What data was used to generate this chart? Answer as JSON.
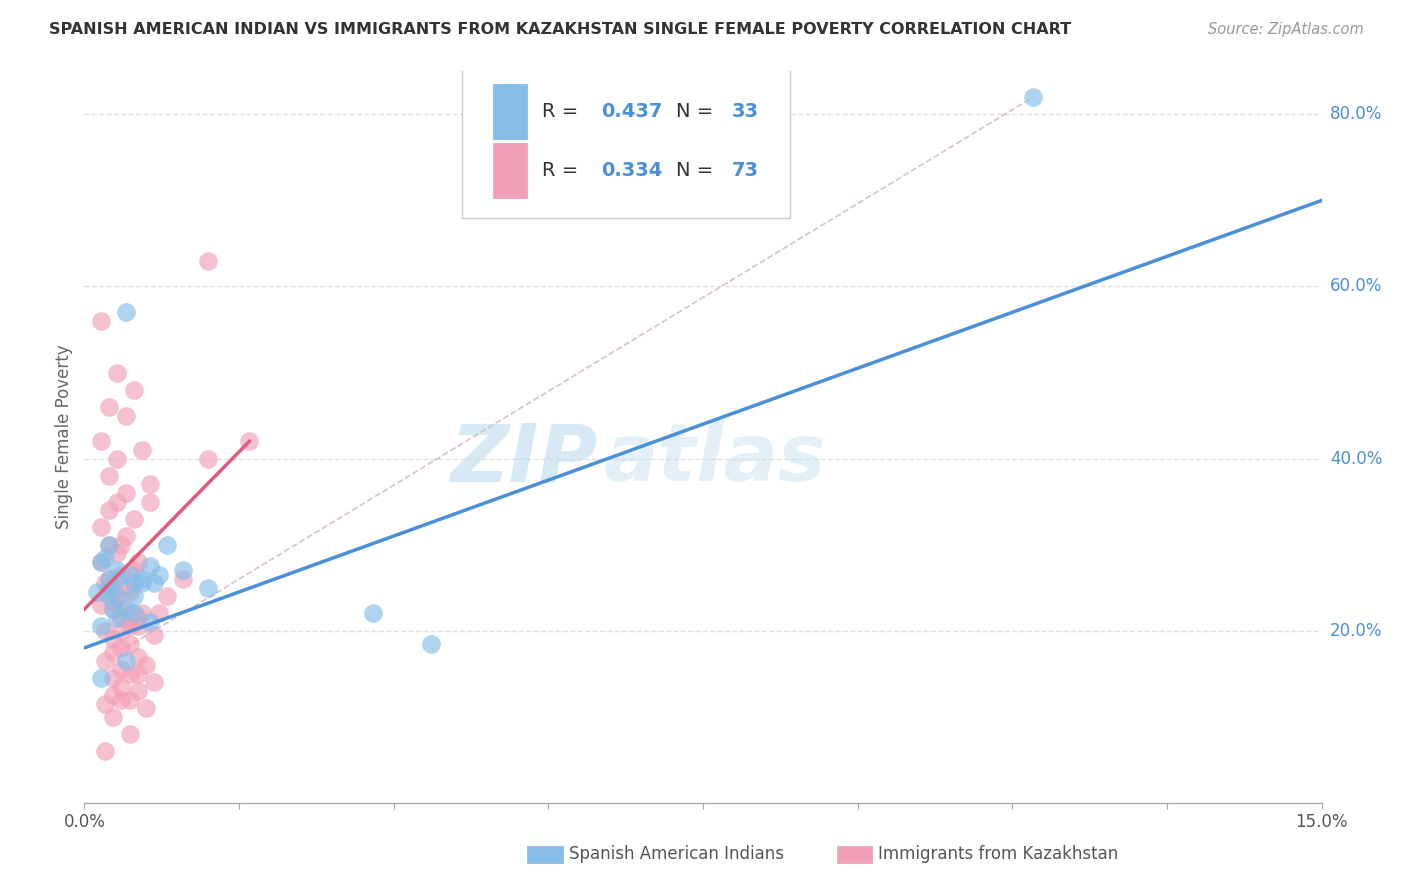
{
  "title": "SPANISH AMERICAN INDIAN VS IMMIGRANTS FROM KAZAKHSTAN SINGLE FEMALE POVERTY CORRELATION CHART",
  "source": "Source: ZipAtlas.com",
  "ylabel": "Single Female Poverty",
  "R1": "0.437",
  "N1": "33",
  "R2": "0.334",
  "N2": "73",
  "color1": "#85bde8",
  "color2": "#f2a0b5",
  "line1_color": "#4a90d9",
  "line2_color": "#e05a7a",
  "diag_color": "#d4b0b8",
  "watermark_zip": "ZIP",
  "watermark_atlas": "atlas",
  "xlim": [
    0.0,
    15.0
  ],
  "ylim": [
    0.0,
    85.0
  ],
  "legend_label1": "Spanish American Indians",
  "legend_label2": "Immigrants from Kazakhstan",
  "scatter1_x": [
    0.5,
    0.3,
    0.8,
    0.2,
    0.4,
    0.6,
    0.15,
    0.9,
    1.2,
    0.35,
    0.7,
    1.5,
    0.4,
    0.25,
    0.55,
    0.85,
    0.3,
    0.6,
    0.4,
    0.2,
    1.0,
    0.7,
    0.5,
    3.5,
    4.2,
    0.4,
    0.3,
    0.6,
    0.2,
    11.5,
    0.8,
    0.5,
    0.3
  ],
  "scatter1_y": [
    57.0,
    30.0,
    27.5,
    28.0,
    26.0,
    25.5,
    24.5,
    26.5,
    27.0,
    22.5,
    26.0,
    25.0,
    24.0,
    28.5,
    26.5,
    25.5,
    24.0,
    22.0,
    21.5,
    20.5,
    30.0,
    25.5,
    22.5,
    22.0,
    18.5,
    27.0,
    26.0,
    24.0,
    14.5,
    82.0,
    21.0,
    16.5,
    25.0
  ],
  "scatter2_x": [
    1.5,
    0.2,
    0.4,
    0.6,
    0.3,
    0.5,
    0.2,
    0.7,
    0.4,
    0.3,
    0.8,
    0.5,
    0.4,
    0.3,
    0.6,
    0.2,
    0.5,
    0.3,
    0.4,
    0.2,
    0.6,
    0.3,
    0.5,
    0.4,
    0.2,
    0.7,
    0.35,
    0.45,
    0.55,
    0.65,
    0.25,
    0.85,
    0.35,
    0.55,
    0.45,
    0.35,
    0.65,
    0.25,
    0.75,
    0.45,
    0.55,
    0.35,
    0.85,
    0.45,
    0.65,
    0.35,
    0.55,
    0.25,
    0.75,
    1.0,
    1.2,
    0.9,
    0.45,
    0.35,
    0.55,
    0.65,
    0.25,
    0.45,
    0.55,
    0.35,
    1.5,
    0.8,
    0.45,
    0.65,
    0.35,
    0.55,
    0.45,
    2.0,
    0.65,
    0.35,
    0.55,
    0.45,
    0.25
  ],
  "scatter2_y": [
    63.0,
    56.0,
    50.0,
    48.0,
    46.0,
    45.0,
    42.0,
    41.0,
    40.0,
    38.0,
    37.0,
    36.0,
    35.0,
    34.0,
    33.0,
    32.0,
    31.0,
    30.0,
    29.0,
    28.0,
    27.0,
    26.0,
    25.0,
    24.0,
    23.0,
    22.0,
    22.5,
    21.5,
    21.0,
    20.5,
    20.0,
    19.5,
    19.0,
    18.5,
    18.0,
    17.5,
    17.0,
    16.5,
    16.0,
    15.5,
    15.0,
    14.5,
    14.0,
    13.5,
    13.0,
    12.5,
    12.0,
    11.5,
    11.0,
    24.0,
    26.0,
    22.0,
    22.5,
    24.5,
    20.5,
    21.5,
    25.5,
    26.5,
    24.5,
    23.5,
    40.0,
    35.0,
    30.0,
    28.0,
    25.0,
    22.0,
    20.0,
    42.0,
    15.0,
    10.0,
    8.0,
    12.0,
    6.0
  ],
  "line1_x0": 0.0,
  "line1_y0": 18.0,
  "line1_x1": 15.0,
  "line1_y1": 70.0,
  "line2_x0": 0.0,
  "line2_y0": 22.5,
  "line2_x1": 2.0,
  "line2_y1": 42.0,
  "diag_x0": 0.5,
  "diag_y0": 18.0,
  "diag_x1": 11.5,
  "diag_y1": 82.0,
  "ytick_vals": [
    20,
    40,
    60,
    80
  ],
  "ytick_labels": [
    "20.0%",
    "40.0%",
    "60.0%",
    "80.0%"
  ],
  "xtick_positions": [
    0,
    1.875,
    3.75,
    5.625,
    7.5,
    9.375,
    11.25,
    13.125,
    15.0
  ],
  "background_color": "#ffffff",
  "grid_color": "#e0e0e0",
  "title_fontsize": 11.5,
  "tick_fontsize": 12,
  "ylabel_fontsize": 12
}
